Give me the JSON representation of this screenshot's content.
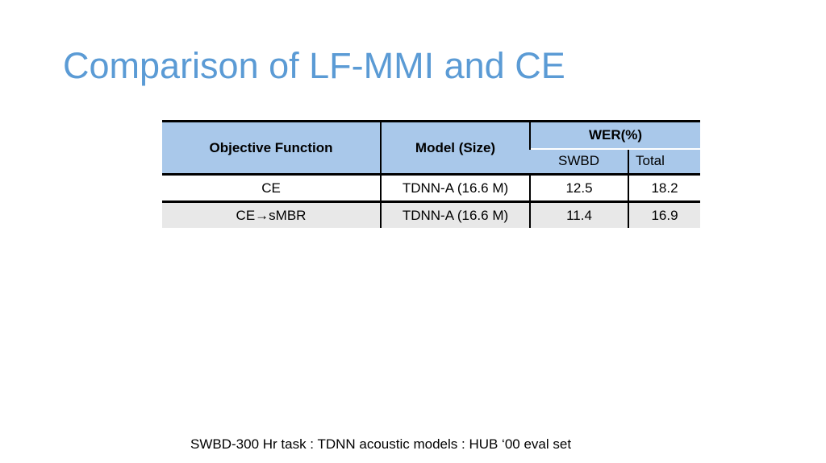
{
  "title": "Comparison of LF-MMI and CE",
  "table": {
    "header": [
      "Objective Function",
      "Model (Size)",
      "WER(%)"
    ],
    "subheader": [
      "SWBD",
      "Total"
    ],
    "rows": [
      [
        "CE",
        "TDNN-A (16.6 M)",
        12.5,
        18.2
      ],
      [
        "CE→sMBR",
        "TDNN-A (16.6 M)",
        11.4,
        16.9
      ]
    ]
  },
  "footnote": "SWBD-300 Hr task : TDNN acoustic models : HUB ‘00 eval set"
}
